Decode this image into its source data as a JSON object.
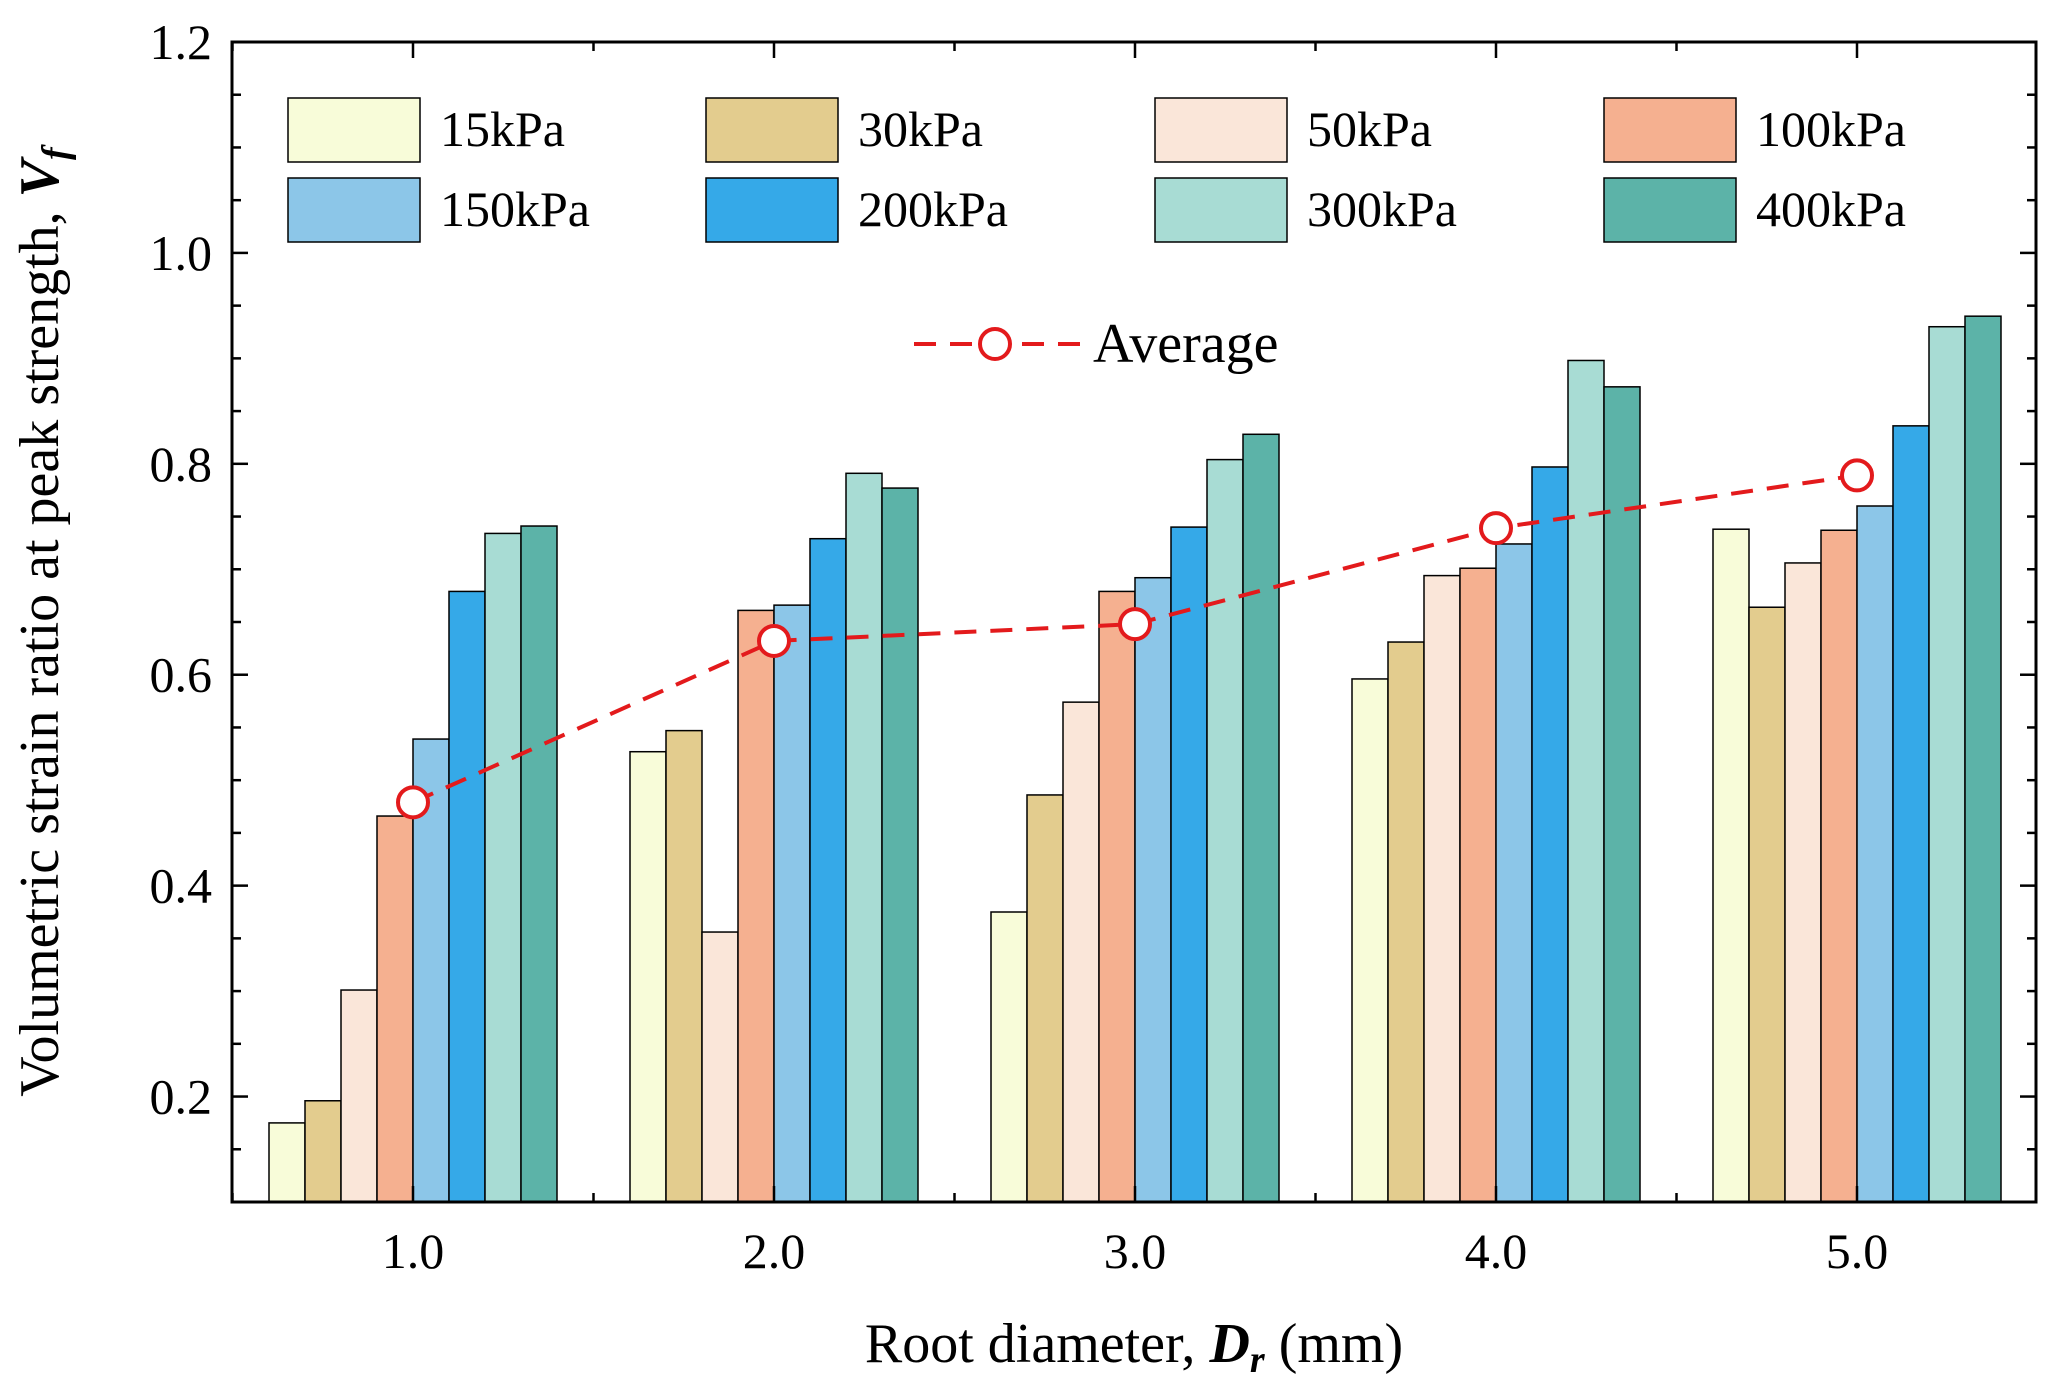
{
  "chart_data": {
    "type": "bar",
    "title": "",
    "xlabel": {
      "prefix": "Root diameter, ",
      "symbol": "D",
      "subscript": "r",
      "suffix": " (mm)"
    },
    "ylabel": {
      "prefix": "Volumetric strain ratio at peak strength, ",
      "symbol": "V",
      "subscript": "f"
    },
    "categories": [
      "1.0",
      "2.0",
      "3.0",
      "4.0",
      "5.0"
    ],
    "ylim": [
      0.1,
      1.2
    ],
    "yticks": [
      "0.2",
      "0.4",
      "0.6",
      "0.8",
      "1.0",
      "1.2"
    ],
    "ytick_values": [
      0.2,
      0.4,
      0.6,
      0.8,
      1.0,
      1.2
    ],
    "legend_position": "top",
    "series": [
      {
        "name": "15kPa",
        "color": "#f8fcd9",
        "values": [
          0.175,
          0.527,
          0.375,
          0.596,
          0.738
        ]
      },
      {
        "name": "30kPa",
        "color": "#e3cc8e",
        "values": [
          0.196,
          0.547,
          0.486,
          0.631,
          0.664
        ]
      },
      {
        "name": "50kPa",
        "color": "#fae6d9",
        "values": [
          0.301,
          0.356,
          0.574,
          0.694,
          0.706
        ]
      },
      {
        "name": "100kPa",
        "color": "#f5b090",
        "values": [
          0.466,
          0.661,
          0.679,
          0.701,
          0.737
        ]
      },
      {
        "name": "150kPa",
        "color": "#8cc6e8",
        "values": [
          0.539,
          0.666,
          0.692,
          0.724,
          0.76
        ]
      },
      {
        "name": "200kPa",
        "color": "#35a9e8",
        "values": [
          0.679,
          0.729,
          0.74,
          0.797,
          0.836
        ]
      },
      {
        "name": "300kPa",
        "color": "#a8dcd4",
        "values": [
          0.734,
          0.791,
          0.804,
          0.898,
          0.93
        ]
      },
      {
        "name": "400kPa",
        "color": "#5cb3a8",
        "values": [
          0.741,
          0.777,
          0.828,
          0.873,
          0.94
        ]
      }
    ],
    "average": {
      "name": "Average",
      "color": "#e31a1c",
      "values": [
        0.479,
        0.632,
        0.648,
        0.739,
        0.789
      ]
    }
  }
}
